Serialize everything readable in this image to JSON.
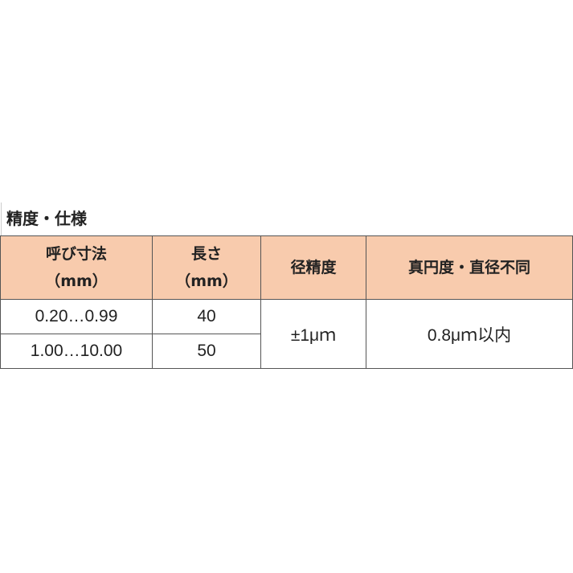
{
  "title": "精度・仕様",
  "header_color": "#F8CBAD",
  "headers": {
    "nominal_size": "呼び寸法",
    "nominal_size_unit": "（mm）",
    "length": "長さ",
    "length_unit": "（mm）",
    "diameter_accuracy": "径精度",
    "roundness": "真円度・直径不同"
  },
  "rows": [
    {
      "nominal_size": "0.20…0.99",
      "length": "40"
    },
    {
      "nominal_size": "1.00…10.00",
      "length": "50"
    }
  ],
  "diameter_accuracy": "±1μｍ",
  "roundness": "0.8μｍ以内"
}
